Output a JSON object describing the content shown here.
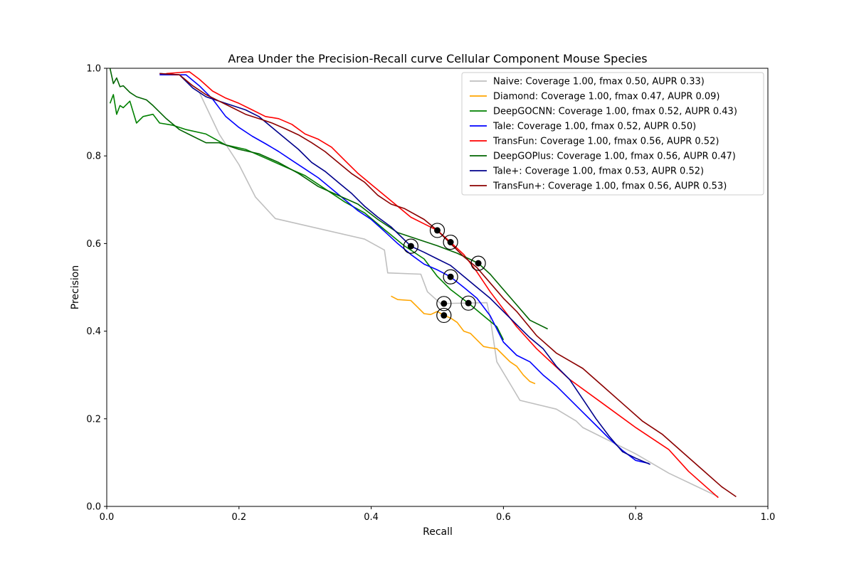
{
  "chart_data": {
    "type": "line",
    "title": "Area Under the Precision-Recall curve Cellular Component Mouse Species",
    "xlabel": "Recall",
    "ylabel": "Precision",
    "xlim": [
      0.0,
      1.0
    ],
    "ylim": [
      0.0,
      1.0
    ],
    "xticks": [
      "0.0",
      "0.2",
      "0.4",
      "0.6",
      "0.8",
      "1.0"
    ],
    "yticks": [
      "0.0",
      "0.2",
      "0.4",
      "0.6",
      "0.8",
      "1.0"
    ],
    "grid": false,
    "legend_position": "top-right",
    "series": [
      {
        "name": "Naive: Coverage  1.00, fmax  0.50, AUPR 0.33)",
        "color": "#bfbfbf",
        "fmax_point": [
          0.51,
          0.463
        ],
        "x": [
          0.14,
          0.17,
          0.2,
          0.225,
          0.255,
          0.39,
          0.42,
          0.425,
          0.475,
          0.485,
          0.505,
          0.575,
          0.58,
          0.59,
          0.61,
          0.625,
          0.68,
          0.71,
          0.72,
          0.8,
          0.85,
          0.925
        ],
        "y": [
          0.945,
          0.85,
          0.78,
          0.706,
          0.657,
          0.61,
          0.585,
          0.533,
          0.53,
          0.49,
          0.463,
          0.465,
          0.43,
          0.33,
          0.28,
          0.242,
          0.222,
          0.195,
          0.18,
          0.12,
          0.076,
          0.022
        ]
      },
      {
        "name": "Diamond: Coverage  1.00, fmax  0.47, AUPR 0.09)",
        "color": "#ffa500",
        "fmax_point": [
          0.51,
          0.436
        ],
        "x": [
          0.43,
          0.44,
          0.46,
          0.47,
          0.48,
          0.49,
          0.5,
          0.51,
          0.52,
          0.53,
          0.54,
          0.55,
          0.56,
          0.57,
          0.58,
          0.59,
          0.6,
          0.61,
          0.62,
          0.63,
          0.64,
          0.648
        ],
        "y": [
          0.48,
          0.472,
          0.47,
          0.455,
          0.44,
          0.438,
          0.445,
          0.436,
          0.43,
          0.42,
          0.4,
          0.395,
          0.38,
          0.365,
          0.362,
          0.36,
          0.345,
          0.33,
          0.32,
          0.3,
          0.285,
          0.28
        ]
      },
      {
        "name": "DeepGOCNN: Coverage  1.00, fmax  0.52, AUPR 0.43)",
        "color": "#008000",
        "fmax_point": [
          0.547,
          0.464
        ],
        "x": [
          0.005,
          0.01,
          0.015,
          0.02,
          0.025,
          0.035,
          0.045,
          0.055,
          0.07,
          0.08,
          0.1,
          0.12,
          0.15,
          0.18,
          0.21,
          0.24,
          0.27,
          0.3,
          0.33,
          0.36,
          0.39,
          0.42,
          0.45,
          0.48,
          0.5,
          0.52,
          0.547,
          0.57,
          0.59,
          0.6
        ],
        "y": [
          0.92,
          0.94,
          0.895,
          0.915,
          0.91,
          0.925,
          0.875,
          0.89,
          0.895,
          0.875,
          0.87,
          0.86,
          0.85,
          0.825,
          0.815,
          0.795,
          0.775,
          0.755,
          0.725,
          0.695,
          0.67,
          0.632,
          0.595,
          0.565,
          0.525,
          0.495,
          0.464,
          0.435,
          0.41,
          0.38
        ]
      },
      {
        "name": "Tale: Coverage  1.00, fmax  0.52, AUPR 0.50)",
        "color": "#0000ff",
        "fmax_point": [
          0.52,
          0.524
        ],
        "x": [
          0.08,
          0.12,
          0.14,
          0.16,
          0.18,
          0.2,
          0.22,
          0.24,
          0.26,
          0.28,
          0.3,
          0.32,
          0.34,
          0.36,
          0.38,
          0.4,
          0.42,
          0.44,
          0.46,
          0.48,
          0.5,
          0.52,
          0.54,
          0.56,
          0.58,
          0.6,
          0.62,
          0.64,
          0.66,
          0.68,
          0.7,
          0.72,
          0.74,
          0.76,
          0.78,
          0.8,
          0.82
        ],
        "y": [
          0.985,
          0.985,
          0.96,
          0.93,
          0.89,
          0.865,
          0.845,
          0.828,
          0.81,
          0.79,
          0.77,
          0.75,
          0.725,
          0.7,
          0.675,
          0.655,
          0.628,
          0.6,
          0.575,
          0.553,
          0.54,
          0.524,
          0.5,
          0.475,
          0.435,
          0.375,
          0.345,
          0.33,
          0.3,
          0.275,
          0.245,
          0.215,
          0.185,
          0.155,
          0.128,
          0.105,
          0.098
        ]
      },
      {
        "name": "TransFun: Coverage  1.00, fmax  0.56, AUPR 0.52)",
        "color": "#ff0000",
        "fmax_point": [
          0.52,
          0.603
        ],
        "x": [
          0.09,
          0.125,
          0.14,
          0.16,
          0.18,
          0.2,
          0.22,
          0.24,
          0.26,
          0.28,
          0.3,
          0.32,
          0.34,
          0.36,
          0.38,
          0.4,
          0.42,
          0.44,
          0.46,
          0.48,
          0.5,
          0.52,
          0.54,
          0.56,
          0.58,
          0.6,
          0.62,
          0.65,
          0.7,
          0.75,
          0.8,
          0.85,
          0.88,
          0.925
        ],
        "y": [
          0.988,
          0.992,
          0.975,
          0.948,
          0.932,
          0.92,
          0.905,
          0.89,
          0.885,
          0.872,
          0.85,
          0.838,
          0.82,
          0.79,
          0.76,
          0.735,
          0.71,
          0.685,
          0.66,
          0.645,
          0.63,
          0.603,
          0.575,
          0.535,
          0.49,
          0.45,
          0.41,
          0.36,
          0.29,
          0.235,
          0.18,
          0.13,
          0.08,
          0.02
        ]
      },
      {
        "name": "DeepGOPlus: Coverage  1.00, fmax  0.56, AUPR 0.47)",
        "color": "#006400",
        "fmax_point": [
          0.562,
          0.555
        ],
        "x": [
          0.005,
          0.01,
          0.015,
          0.02,
          0.025,
          0.035,
          0.045,
          0.06,
          0.07,
          0.09,
          0.11,
          0.13,
          0.15,
          0.17,
          0.2,
          0.23,
          0.26,
          0.29,
          0.32,
          0.35,
          0.38,
          0.41,
          0.44,
          0.47,
          0.5,
          0.53,
          0.562,
          0.58,
          0.6,
          0.62,
          0.64,
          0.667
        ],
        "y": [
          1.0,
          0.965,
          0.978,
          0.958,
          0.96,
          0.945,
          0.935,
          0.928,
          0.915,
          0.885,
          0.86,
          0.845,
          0.83,
          0.83,
          0.815,
          0.805,
          0.785,
          0.76,
          0.73,
          0.71,
          0.69,
          0.655,
          0.625,
          0.61,
          0.595,
          0.578,
          0.555,
          0.53,
          0.495,
          0.46,
          0.425,
          0.405
        ]
      },
      {
        "name": "Tale+: Coverage  1.00, fmax  0.53, AUPR 0.52)",
        "color": "#00008b",
        "fmax_point": [
          0.46,
          0.594
        ],
        "x": [
          0.08,
          0.11,
          0.13,
          0.15,
          0.17,
          0.19,
          0.21,
          0.23,
          0.25,
          0.27,
          0.29,
          0.31,
          0.33,
          0.35,
          0.37,
          0.39,
          0.41,
          0.43,
          0.46,
          0.48,
          0.5,
          0.52,
          0.54,
          0.56,
          0.58,
          0.6,
          0.62,
          0.64,
          0.66,
          0.68,
          0.7,
          0.72,
          0.74,
          0.76,
          0.78,
          0.8,
          0.822
        ],
        "y": [
          0.988,
          0.985,
          0.955,
          0.935,
          0.925,
          0.915,
          0.905,
          0.89,
          0.865,
          0.84,
          0.815,
          0.785,
          0.765,
          0.74,
          0.715,
          0.685,
          0.66,
          0.638,
          0.594,
          0.58,
          0.565,
          0.55,
          0.525,
          0.5,
          0.475,
          0.445,
          0.415,
          0.385,
          0.36,
          0.32,
          0.29,
          0.245,
          0.2,
          0.16,
          0.125,
          0.11,
          0.096
        ]
      },
      {
        "name": "TransFun+: Coverage  1.00, fmax  0.56, AUPR 0.53)",
        "color": "#8b0000",
        "fmax_point": [
          0.5,
          0.63
        ],
        "x": [
          0.08,
          0.11,
          0.13,
          0.15,
          0.17,
          0.19,
          0.21,
          0.23,
          0.25,
          0.27,
          0.29,
          0.31,
          0.33,
          0.35,
          0.37,
          0.39,
          0.41,
          0.43,
          0.45,
          0.48,
          0.5,
          0.52,
          0.54,
          0.56,
          0.58,
          0.6,
          0.62,
          0.65,
          0.68,
          0.72,
          0.75,
          0.78,
          0.81,
          0.84,
          0.87,
          0.9,
          0.93,
          0.952
        ],
        "y": [
          0.988,
          0.985,
          0.96,
          0.94,
          0.925,
          0.91,
          0.895,
          0.885,
          0.875,
          0.862,
          0.848,
          0.83,
          0.81,
          0.785,
          0.76,
          0.74,
          0.71,
          0.69,
          0.68,
          0.655,
          0.63,
          0.6,
          0.57,
          0.545,
          0.51,
          0.475,
          0.445,
          0.39,
          0.35,
          0.315,
          0.275,
          0.235,
          0.195,
          0.165,
          0.125,
          0.085,
          0.045,
          0.022
        ]
      }
    ]
  }
}
